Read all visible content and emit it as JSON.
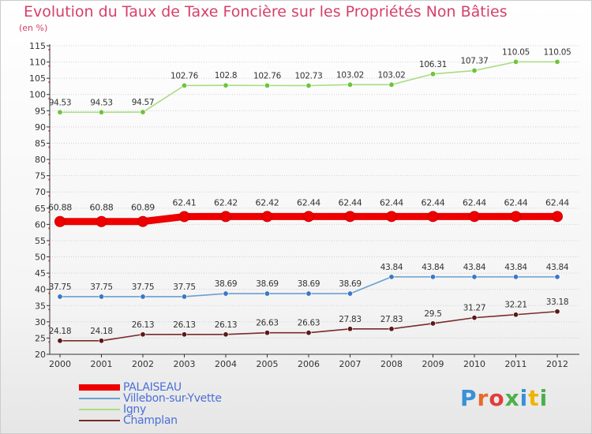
{
  "title": "Evolution du Taux de Taxe Foncière sur les Propriétés Non Bâties",
  "subtitle": "(en %)",
  "logo": "Proxiti",
  "colors": {
    "title": "#d6406a",
    "grid": "#d0d0d0",
    "axis": "#333333",
    "legend_text": "#4a6fd8"
  },
  "chart_data": {
    "type": "line",
    "title": "Evolution du Taux de Taxe Foncière sur les Propriétés Non Bâties",
    "ylabel": "(en %)",
    "xlabel": "",
    "ylim": [
      20,
      115
    ],
    "yticks": [
      20,
      25,
      30,
      35,
      40,
      45,
      50,
      55,
      60,
      65,
      70,
      75,
      80,
      85,
      90,
      95,
      100,
      105,
      110,
      115
    ],
    "categories": [
      "2000",
      "2001",
      "2002",
      "2003",
      "2004",
      "2005",
      "2006",
      "2007",
      "2008",
      "2009",
      "2010",
      "2011",
      "2012"
    ],
    "legend_position": "bottom-left",
    "grid": true,
    "series": [
      {
        "name": "PALAISEAU",
        "color": "#ee0000",
        "emphasis": true,
        "values": [
          60.88,
          60.88,
          60.89,
          62.41,
          62.42,
          62.42,
          62.44,
          62.44,
          62.44,
          62.44,
          62.44,
          62.44,
          62.44
        ],
        "labels": [
          "60.88",
          "60.88",
          "60.89",
          "62.41",
          "62.42",
          "62.42",
          "62.44",
          "62.44",
          "62.44",
          "62.44",
          "62.44",
          "62.44",
          "62.44"
        ]
      },
      {
        "name": "Villebon-sur-Yvette",
        "color": "#6a9fd0",
        "point_color": "#3a78c4",
        "values": [
          37.75,
          37.75,
          37.75,
          37.75,
          38.69,
          38.69,
          38.69,
          38.69,
          43.84,
          43.84,
          43.84,
          43.84,
          43.84
        ],
        "labels": [
          "37.75",
          "37.75",
          "37.75",
          "37.75",
          "38.69",
          "38.69",
          "38.69",
          "38.69",
          "43.84",
          "43.84",
          "43.84",
          "43.84",
          "43.84"
        ]
      },
      {
        "name": "Igny",
        "color": "#a8dd80",
        "point_color": "#6cc43c",
        "values": [
          94.53,
          94.53,
          94.57,
          102.76,
          102.8,
          102.76,
          102.73,
          103.02,
          103.02,
          106.31,
          107.37,
          110.05,
          110.05
        ],
        "labels": [
          "94.53",
          "94.53",
          "94.57",
          "102.76",
          "102.8",
          "102.76",
          "102.73",
          "103.02",
          "103.02",
          "106.31",
          "107.37",
          "110.05",
          "110.05"
        ]
      },
      {
        "name": "Champlan",
        "color": "#7a2a2a",
        "point_color": "#5a1818",
        "values": [
          24.18,
          24.18,
          26.13,
          26.13,
          26.13,
          26.63,
          26.63,
          27.83,
          27.83,
          29.5,
          31.27,
          32.21,
          33.18
        ],
        "labels": [
          "24.18",
          "24.18",
          "26.13",
          "26.13",
          "26.13",
          "26.63",
          "26.63",
          "27.83",
          "27.83",
          "29.5",
          "31.27",
          "32.21",
          "33.18"
        ]
      }
    ]
  }
}
